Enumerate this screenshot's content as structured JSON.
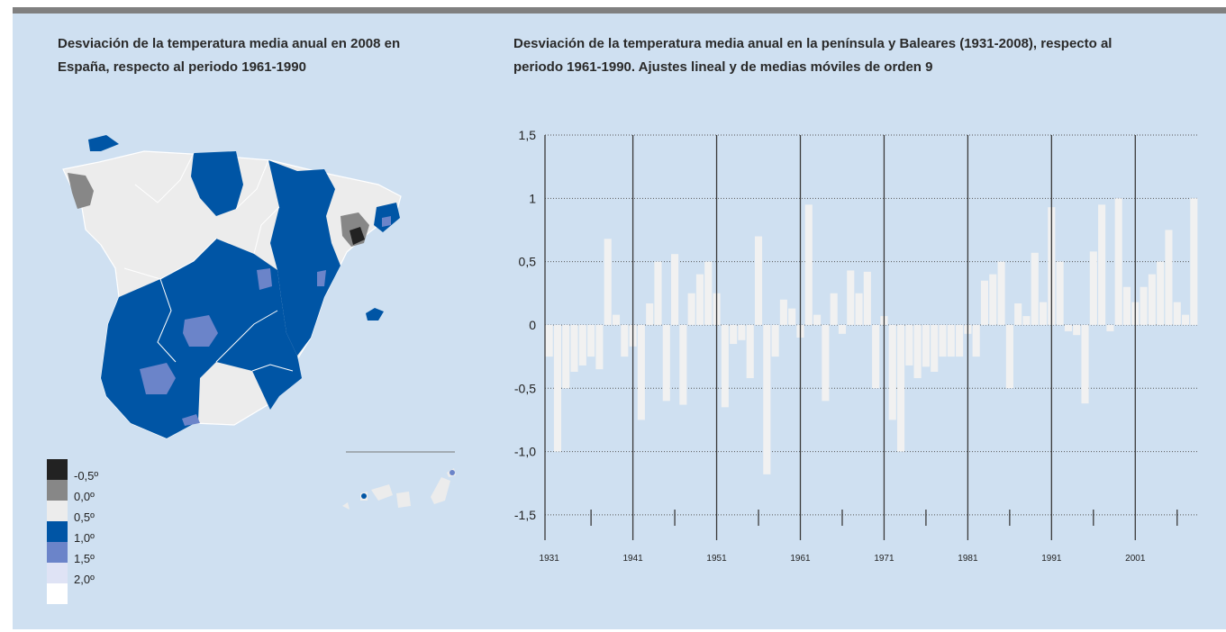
{
  "colors": {
    "panel": "#cfe0f1",
    "rule": "#808080",
    "bars": "#f1f1f1",
    "grid": "#555555",
    "map_blue": "#0055a5",
    "map_lightblue": "#6b84c9",
    "map_grey": "#878787",
    "map_black": "#222222",
    "map_white": "#ececec"
  },
  "map_panel": {
    "title_line1": "Desviación de la temperatura media anual en 2008 en",
    "title_line2": "España, respecto al periodo 1961-1990",
    "legend": [
      {
        "label": "-0,5º",
        "color": "#222222"
      },
      {
        "label": "0,0º",
        "color": "#878787"
      },
      {
        "label": "0,5º",
        "color": "#ececec"
      },
      {
        "label": "1,0º",
        "color": "#0055a5"
      },
      {
        "label": "1,5º",
        "color": "#6b84c9"
      },
      {
        "label": "2,0º",
        "color": "#dfe3f5"
      },
      {
        "label": "",
        "color": "#ffffff"
      }
    ]
  },
  "chart_panel": {
    "title_line1": "Desviación de la temperatura media anual en la península y Baleares (1931-2008), respecto al",
    "title_line2": "periodo 1961-1990. Ajustes lineal y de medias móviles de orden 9"
  },
  "chart_data": {
    "type": "bar",
    "title": "Desviación de la temperatura media anual en la península y Baleares (1931-2008), respecto al periodo 1961-1990. Ajustes lineal y de medias móviles de orden 9",
    "xlabel": "",
    "ylabel": "",
    "ylim": [
      -1.7,
      1.5
    ],
    "yticks": [
      1.5,
      1.0,
      0.5,
      0.0,
      -0.5,
      -1.0,
      -1.5
    ],
    "ytick_labels": [
      "1,5",
      "1",
      "0,5",
      "0",
      "-0,5",
      "-1,0",
      "-1,5"
    ],
    "xtick_labels": [
      "1931",
      "1941",
      "1951",
      "1961",
      "1971",
      "1981",
      "1991",
      "2001"
    ],
    "grid": true,
    "categories": [
      1931,
      1932,
      1933,
      1934,
      1935,
      1936,
      1937,
      1938,
      1939,
      1940,
      1941,
      1942,
      1943,
      1944,
      1945,
      1946,
      1947,
      1948,
      1949,
      1950,
      1951,
      1952,
      1953,
      1954,
      1955,
      1956,
      1957,
      1958,
      1959,
      1960,
      1961,
      1962,
      1963,
      1964,
      1965,
      1966,
      1967,
      1968,
      1969,
      1970,
      1971,
      1972,
      1973,
      1974,
      1975,
      1976,
      1977,
      1978,
      1979,
      1980,
      1981,
      1982,
      1983,
      1984,
      1985,
      1986,
      1987,
      1988,
      1989,
      1990,
      1991,
      1992,
      1993,
      1994,
      1995,
      1996,
      1997,
      1998,
      1999,
      2000,
      2001,
      2002,
      2003,
      2004,
      2005,
      2006,
      2007,
      2008
    ],
    "values": [
      -0.25,
      -1.0,
      -0.5,
      -0.37,
      -0.32,
      -0.25,
      -0.35,
      0.68,
      0.08,
      -0.25,
      -0.17,
      -0.75,
      0.17,
      0.5,
      -0.6,
      0.56,
      -0.63,
      0.25,
      0.4,
      0.5,
      0.25,
      -0.65,
      -0.15,
      -0.12,
      -0.42,
      0.7,
      -1.18,
      -0.25,
      0.2,
      0.13,
      -0.1,
      0.95,
      0.08,
      -0.6,
      0.25,
      -0.07,
      0.43,
      0.25,
      0.42,
      -0.5,
      0.07,
      -0.75,
      -1.0,
      -0.32,
      -0.42,
      -0.33,
      -0.37,
      -0.25,
      -0.25,
      -0.25,
      -0.07,
      -0.25,
      0.35,
      0.4,
      0.5,
      -0.5,
      0.17,
      0.07,
      0.57,
      0.18,
      0.93,
      0.5,
      -0.05,
      -0.08,
      -0.62,
      0.58,
      0.95,
      -0.05,
      1.0,
      0.3,
      0.18,
      0.3,
      0.4,
      0.5,
      0.75,
      0.18,
      0.08,
      1.0
    ]
  }
}
